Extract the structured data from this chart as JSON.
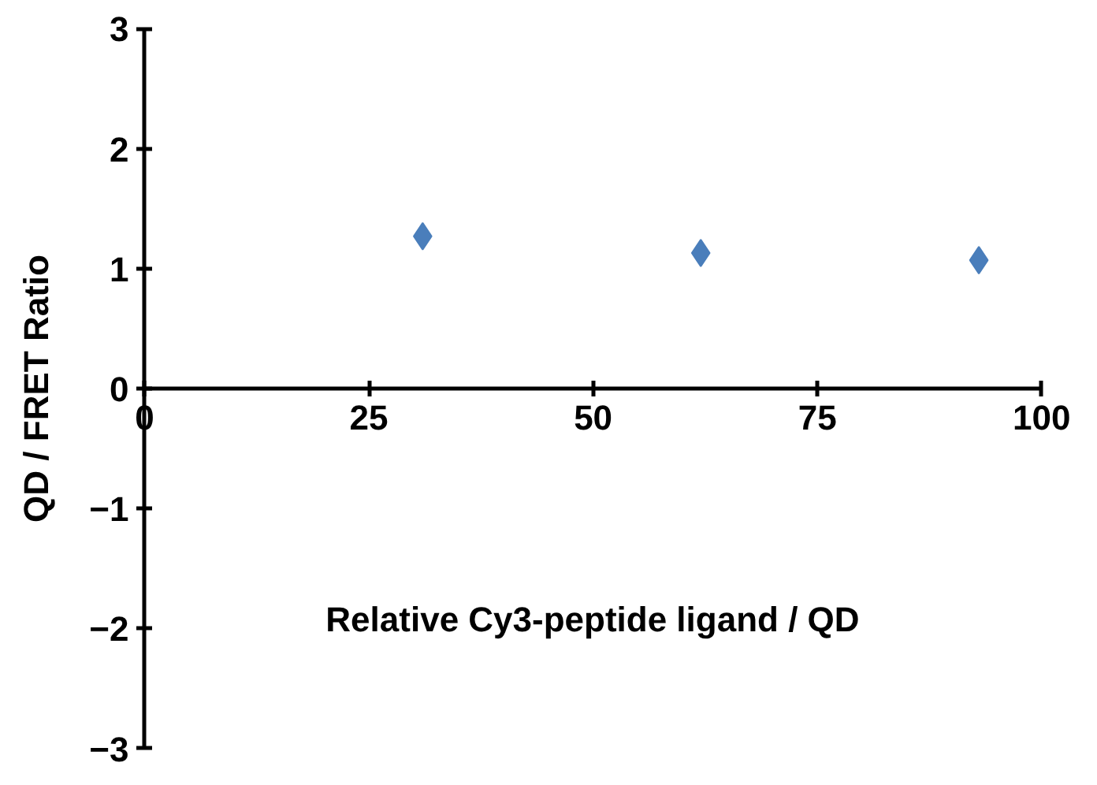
{
  "chart_data": {
    "type": "scatter",
    "xlabel": "Relative Cy3-peptide ligand / QD",
    "ylabel": "QD / FRET Ratio",
    "x": [
      31,
      62,
      93
    ],
    "series": [
      {
        "color": "#4a7ebb",
        "values": [
          1.27,
          1.13,
          1.07
        ]
      }
    ],
    "xlim": [
      0,
      100
    ],
    "ylim": [
      -3,
      3
    ],
    "xticks": [
      0,
      25,
      50,
      75,
      100
    ],
    "yticks": [
      -3,
      -2,
      -1,
      0,
      1,
      2,
      3
    ],
    "marker": "diamond",
    "grid": false
  }
}
